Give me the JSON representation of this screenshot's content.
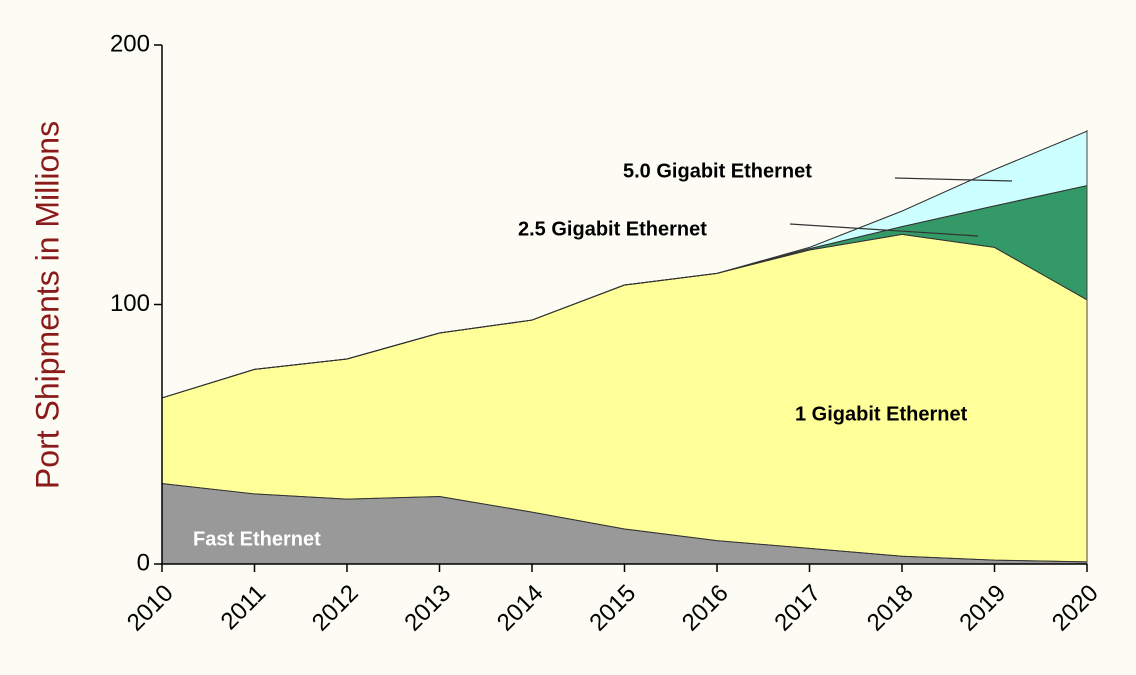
{
  "chart_data": {
    "type": "stacked_area",
    "y_label": "Port Shipments in Millions",
    "categories": [
      "2010",
      "2011",
      "2012",
      "2013",
      "2014",
      "2015",
      "2016",
      "2017",
      "2018",
      "2019",
      "2020"
    ],
    "series": [
      {
        "name": "Fast Ethernet",
        "color": "#999999",
        "values": [
          31,
          27,
          25,
          26,
          20,
          13.5,
          9,
          6,
          3,
          1.5,
          0.8
        ]
      },
      {
        "name": "1 Gigabit Ethernet",
        "color": "#ffff99",
        "values": [
          33,
          48,
          54,
          63,
          74,
          94,
          103,
          115,
          124,
          120.5,
          101
        ]
      },
      {
        "name": "2.5 Gigabit Ethernet",
        "color": "#339966",
        "values": [
          0,
          0,
          0,
          0,
          0,
          0,
          0,
          0.5,
          3,
          16,
          44
        ]
      },
      {
        "name": "5.0 Gigabit Ethernet",
        "color": "#ccffff",
        "values": [
          0,
          0,
          0,
          0,
          0,
          0,
          0,
          0.5,
          6,
          14,
          21
        ]
      }
    ],
    "ylim": [
      0,
      200
    ],
    "yticks": [
      0,
      100,
      200
    ]
  }
}
